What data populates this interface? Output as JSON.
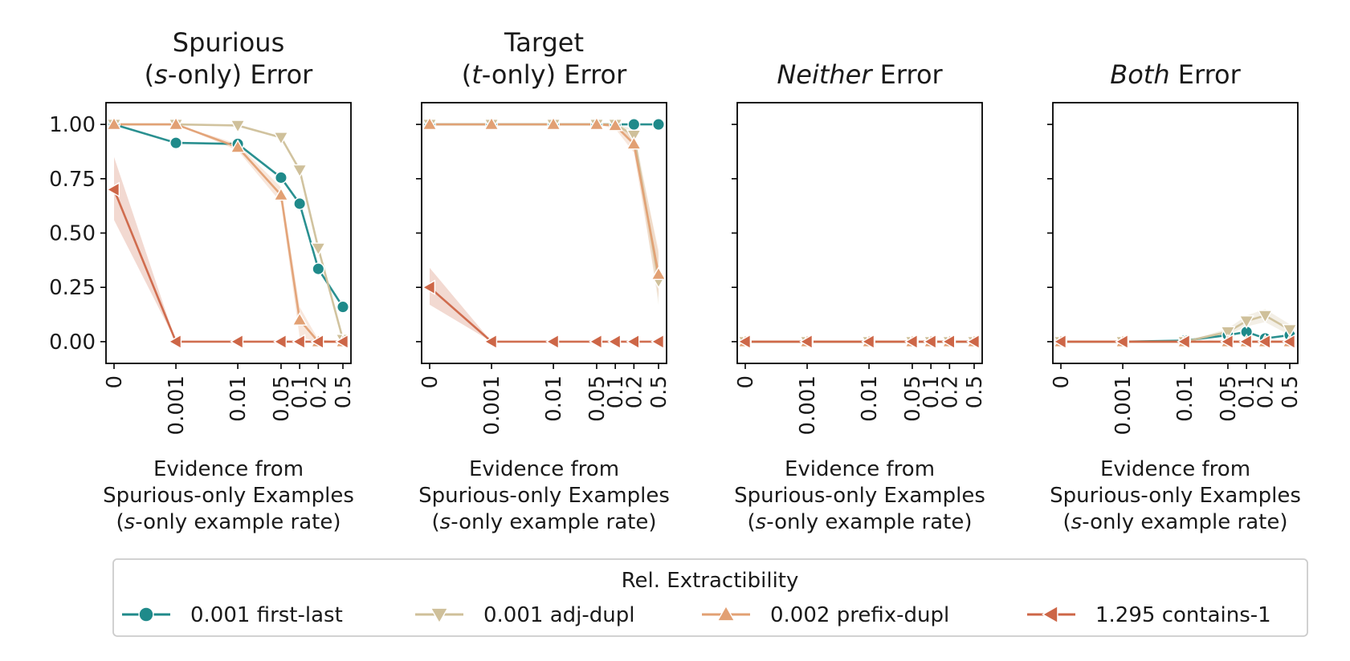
{
  "chart_data": {
    "type": "line",
    "x_scale": "symlog",
    "x": [
      0,
      0.001,
      0.01,
      0.05,
      0.1,
      0.2,
      0.5
    ],
    "x_tick_labels": [
      "0",
      "0.001",
      "0.01",
      "0.05",
      "0.1",
      "0.2",
      "0.5"
    ],
    "y_ticks": [
      0,
      0.25,
      0.5,
      0.75,
      1.0
    ],
    "y_tick_labels": [
      "0.00",
      "0.25",
      "0.50",
      "0.75",
      "1.00"
    ],
    "ylim": [
      -0.1,
      1.1
    ],
    "grid": false,
    "xlabel_lines": [
      [
        "Evidence from"
      ],
      [
        "Spurious-only Examples"
      ],
      [
        "(",
        {
          "t": "s",
          "italic": true
        },
        "-only example rate)"
      ]
    ],
    "legend": {
      "title": "Rel. Extractibility",
      "placement": "bottom-center",
      "entries": [
        {
          "label": "0.001 first-last",
          "color": "#1f8a8a",
          "marker": "circle"
        },
        {
          "label": "0.001 adj-dupl",
          "color": "#cfc09a",
          "marker": "triangle-down"
        },
        {
          "label": "0.002 prefix-dupl",
          "color": "#e2a073",
          "marker": "triangle-up"
        },
        {
          "label": "1.295 contains-1",
          "color": "#cd6647",
          "marker": "triangle-left"
        }
      ]
    },
    "panels": [
      {
        "title_lines": [
          [
            "Spurious"
          ],
          [
            "(",
            {
              "t": "s",
              "italic": true
            },
            "-only) Error"
          ]
        ],
        "series": [
          {
            "values": [
              1.0,
              0.915,
              0.91,
              0.755,
              0.635,
              0.335,
              0.16
            ]
          },
          {
            "values": [
              1.0,
              1.0,
              0.995,
              0.94,
              0.79,
              0.43,
              0.01
            ]
          },
          {
            "values": [
              1.0,
              1.0,
              0.895,
              0.675,
              0.1,
              0.0,
              0.0
            ],
            "band": {
              "lower": [
                1.0,
                1.0,
                0.88,
                0.64,
                0.02,
                0.0,
                0.0
              ],
              "upper": [
                1.0,
                1.0,
                0.91,
                0.71,
                0.16,
                0.01,
                0.0
              ]
            }
          },
          {
            "values": [
              0.7,
              0.0,
              0.0,
              0.0,
              0.0,
              0.0,
              0.0
            ],
            "band": {
              "lower": [
                0.56,
                0.0,
                0.0,
                0.0,
                0.0,
                0.0,
                0.0
              ],
              "upper": [
                0.85,
                0.0,
                0.0,
                0.0,
                0.0,
                0.0,
                0.0
              ]
            }
          }
        ]
      },
      {
        "title_lines": [
          [
            "Target"
          ],
          [
            "(",
            {
              "t": "t",
              "italic": true
            },
            "-only) Error"
          ]
        ],
        "series": [
          {
            "values": [
              1.0,
              1.0,
              1.0,
              1.0,
              1.0,
              1.0,
              1.0
            ]
          },
          {
            "values": [
              1.0,
              1.0,
              1.0,
              1.0,
              1.0,
              0.95,
              0.28
            ],
            "band": {
              "lower": [
                1.0,
                1.0,
                1.0,
                1.0,
                0.99,
                0.92,
                0.17
              ],
              "upper": [
                1.0,
                1.0,
                1.0,
                1.0,
                1.0,
                0.98,
                0.4
              ]
            }
          },
          {
            "values": [
              1.0,
              1.0,
              1.0,
              1.0,
              0.995,
              0.91,
              0.31
            ],
            "band": {
              "lower": [
                1.0,
                1.0,
                1.0,
                1.0,
                0.98,
                0.87,
                0.2
              ],
              "upper": [
                1.0,
                1.0,
                1.0,
                1.0,
                1.0,
                0.95,
                0.42
              ]
            }
          },
          {
            "values": [
              0.25,
              0.0,
              0.0,
              0.0,
              0.0,
              0.0,
              0.0
            ],
            "band": {
              "lower": [
                0.17,
                0.0,
                0.0,
                0.0,
                0.0,
                0.0,
                0.0
              ],
              "upper": [
                0.34,
                0.0,
                0.0,
                0.0,
                0.0,
                0.0,
                0.0
              ]
            }
          }
        ]
      },
      {
        "title_lines": [
          [
            {
              "t": "Neither",
              "italic": true
            },
            " Error"
          ]
        ],
        "series": [
          {
            "values": [
              0.0,
              0.0,
              0.0,
              0.0,
              0.0,
              0.0,
              0.0
            ]
          },
          {
            "values": [
              0.0,
              0.0,
              0.0,
              0.0,
              0.0,
              0.0,
              0.0
            ]
          },
          {
            "values": [
              0.0,
              0.0,
              0.0,
              0.0,
              0.0,
              0.0,
              0.0
            ]
          },
          {
            "values": [
              0.0,
              0.0,
              0.0,
              0.0,
              0.0,
              0.0,
              0.0
            ]
          }
        ]
      },
      {
        "title_lines": [
          [
            {
              "t": "Both",
              "italic": true
            },
            " Error"
          ]
        ],
        "series": [
          {
            "values": [
              0.0,
              0.0,
              0.005,
              0.03,
              0.045,
              0.015,
              0.03
            ]
          },
          {
            "values": [
              0.0,
              0.0,
              0.0,
              0.045,
              0.095,
              0.12,
              0.055
            ],
            "band": {
              "lower": [
                0.0,
                0.0,
                0.0,
                0.03,
                0.07,
                0.09,
                0.03
              ],
              "upper": [
                0.0,
                0.0,
                0.0,
                0.06,
                0.12,
                0.15,
                0.08
              ]
            }
          },
          {
            "values": [
              0.0,
              0.0,
              0.0,
              0.0,
              0.0,
              0.0,
              0.0
            ]
          },
          {
            "values": [
              0.0,
              0.0,
              0.0,
              0.0,
              0.0,
              0.0,
              0.0
            ]
          }
        ]
      }
    ]
  }
}
